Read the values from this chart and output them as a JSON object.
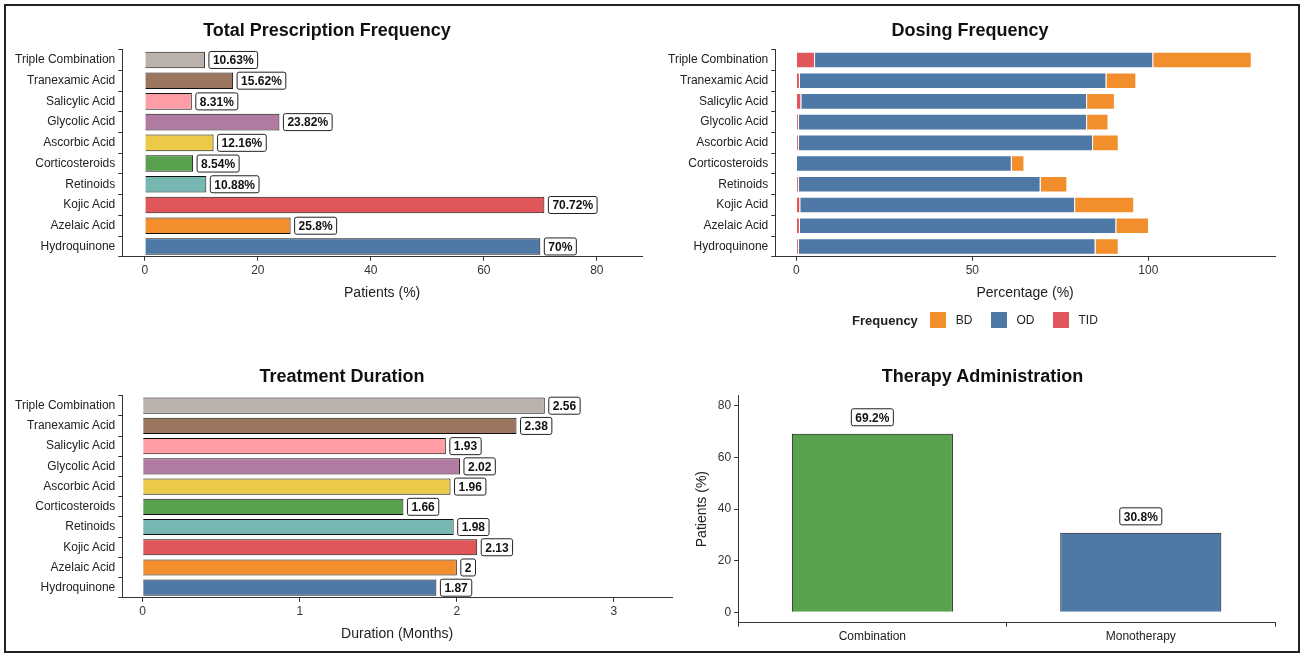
{
  "chart_data": [
    {
      "type": "bar",
      "orientation": "horizontal",
      "title": "Total Prescription Frequency",
      "xlabel": "Patients (%)",
      "categories": [
        "Triple Combination",
        "Tranexamic Acid",
        "Salicylic Acid",
        "Glycolic Acid",
        "Ascorbic Acid",
        "Corticosteroids",
        "Retinoids",
        "Kojic Acid",
        "Azelaic Acid",
        "Hydroquinone"
      ],
      "values": [
        10.63,
        15.62,
        8.31,
        23.82,
        12.16,
        8.54,
        10.88,
        70.72,
        25.8,
        70
      ],
      "colors": [
        "#bab0ac",
        "#9c755f",
        "#ff9da7",
        "#b07aa1",
        "#edc948",
        "#59a14f",
        "#76b7b2",
        "#e15759",
        "#f28e2b",
        "#4e79a7"
      ],
      "value_labels": [
        "10.63%",
        "15.62%",
        "8.31%",
        "23.82%",
        "12.16%",
        "8.54%",
        "10.88%",
        "70.72%",
        "25.8%",
        "70%"
      ],
      "xlim": [
        -4,
        88
      ],
      "xticks": [
        0,
        20,
        40,
        60,
        80
      ],
      "grid": false,
      "legend": false
    },
    {
      "type": "bar",
      "orientation": "horizontal",
      "stacked": true,
      "title": "Dosing Frequency",
      "xlabel": "Percentage (%)",
      "legend_title": "Frequency",
      "categories": [
        "Triple Combination",
        "Tranexamic Acid",
        "Salicylic Acid",
        "Glycolic Acid",
        "Ascorbic Acid",
        "Corticosteroids",
        "Retinoids",
        "Kojic Acid",
        "Azelaic Acid",
        "Hydroquinone"
      ],
      "series": [
        {
          "name": "TID",
          "color": "#e15759",
          "values": [
            5.3,
            1,
            1.4,
            0.7,
            0.7,
            0,
            0.7,
            1.1,
            1,
            0.7
          ]
        },
        {
          "name": "OD",
          "color": "#4e79a7",
          "values": [
            96.1,
            87.1,
            81.2,
            81.9,
            83.6,
            61.2,
            68.7,
            78.1,
            89.9,
            84.3
          ]
        },
        {
          "name": "BD",
          "color": "#f28e2b",
          "values": [
            28,
            8.5,
            7.9,
            6.1,
            7.3,
            3.6,
            7.6,
            16.8,
            9.3,
            6.6
          ]
        }
      ],
      "xlim": [
        -6,
        136
      ],
      "xticks": [
        0,
        50,
        100
      ],
      "grid": false,
      "legend": "bottom"
    },
    {
      "type": "bar",
      "orientation": "horizontal",
      "title": "Treatment Duration",
      "xlabel": "Duration (Months)",
      "categories": [
        "Triple Combination",
        "Tranexamic Acid",
        "Salicylic Acid",
        "Glycolic Acid",
        "Ascorbic Acid",
        "Corticosteroids",
        "Retinoids",
        "Kojic Acid",
        "Azelaic Acid",
        "Hydroquinone"
      ],
      "values": [
        2.56,
        2.38,
        1.93,
        2.02,
        1.96,
        1.66,
        1.98,
        2.13,
        2,
        1.87
      ],
      "colors": [
        "#bab0ac",
        "#9c755f",
        "#ff9da7",
        "#b07aa1",
        "#edc948",
        "#59a14f",
        "#76b7b2",
        "#e15759",
        "#f28e2b",
        "#4e79a7"
      ],
      "data_labels": true,
      "xlim": [
        -0.13,
        3.37
      ],
      "xticks": [
        0,
        1,
        2,
        3
      ],
      "grid": false,
      "legend": false
    },
    {
      "type": "bar",
      "title": "Therapy Administration",
      "ylabel": "Patients (%)",
      "categories": [
        "Combination",
        "Monotherapy"
      ],
      "values": [
        69.2,
        30.8
      ],
      "colors": [
        "#59a14f",
        "#4e79a7"
      ],
      "value_labels": [
        "69.2%",
        "30.8%"
      ],
      "ylim": [
        -4,
        84
      ],
      "yticks": [
        0,
        20,
        40,
        60,
        80
      ],
      "grid": false,
      "legend": false
    }
  ]
}
